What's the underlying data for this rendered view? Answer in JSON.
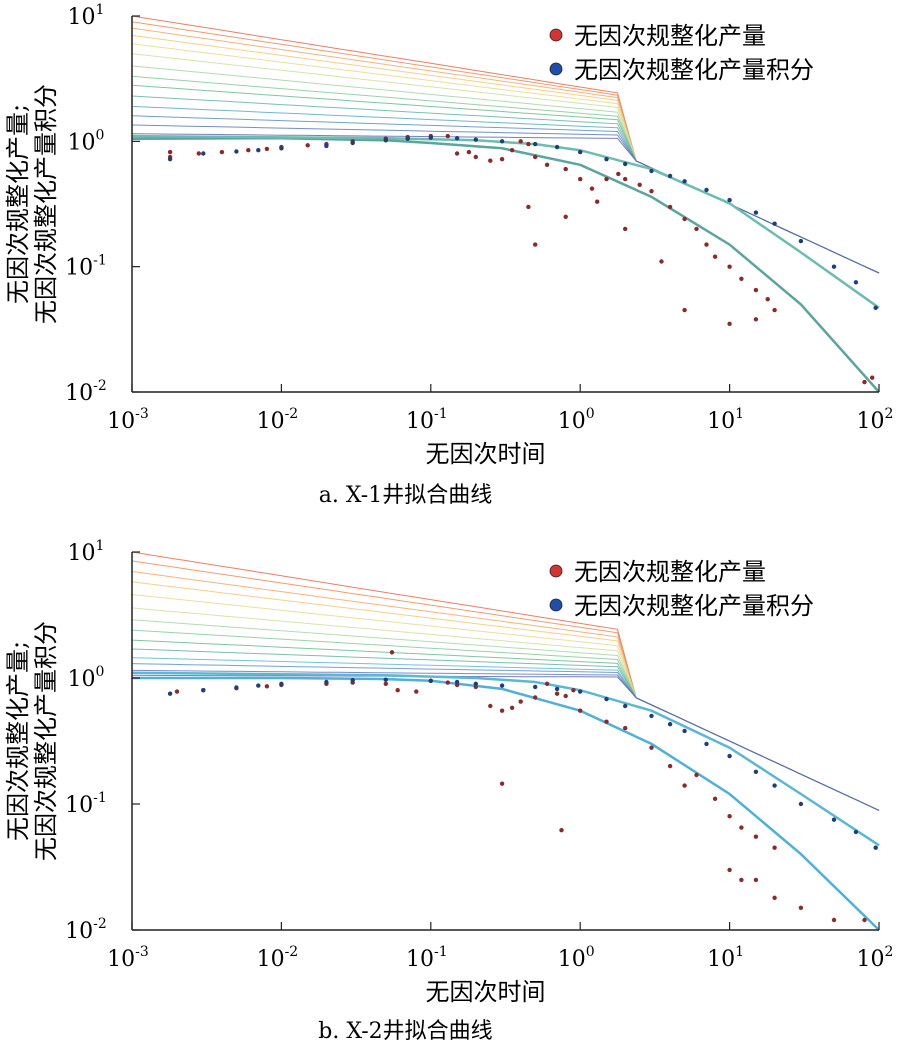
{
  "chart_data": [
    {
      "type": "scatter",
      "subtitle": "a. X-1井拟合曲线",
      "xlabel": "无因次时间",
      "ylabel": [
        "无因次规整化产量;",
        "无因次规整化产量积分"
      ],
      "xscale": "log",
      "yscale": "log",
      "xlim": [
        0.001,
        100
      ],
      "ylim": [
        0.01,
        10
      ],
      "x_ticks": [
        {
          "base": "10",
          "exp": "-3"
        },
        {
          "base": "10",
          "exp": "-2"
        },
        {
          "base": "10",
          "exp": "-1"
        },
        {
          "base": "10",
          "exp": "0"
        },
        {
          "base": "10",
          "exp": "1"
        },
        {
          "base": "10",
          "exp": "2"
        }
      ],
      "y_ticks": [
        {
          "base": "10",
          "exp": "-2"
        },
        {
          "base": "10",
          "exp": "-1"
        },
        {
          "base": "10",
          "exp": "0"
        },
        {
          "base": "10",
          "exp": "1"
        }
      ],
      "legend_position": "top-right",
      "series": [
        {
          "name": "无因次规整化产量",
          "color": "#8b2a2a",
          "points": [
            [
              0.0018,
              0.75
            ],
            [
              0.0018,
              0.82
            ],
            [
              0.0028,
              0.8
            ],
            [
              0.004,
              0.82
            ],
            [
              0.006,
              0.85
            ],
            [
              0.008,
              0.87
            ],
            [
              0.01,
              0.9
            ],
            [
              0.015,
              0.93
            ],
            [
              0.02,
              0.95
            ],
            [
              0.03,
              1.0
            ],
            [
              0.05,
              1.05
            ],
            [
              0.07,
              1.08
            ],
            [
              0.1,
              1.1
            ],
            [
              0.13,
              1.1
            ],
            [
              0.15,
              0.8
            ],
            [
              0.18,
              0.82
            ],
            [
              0.2,
              0.75
            ],
            [
              0.25,
              0.7
            ],
            [
              0.3,
              0.72
            ],
            [
              0.35,
              0.85
            ],
            [
              0.4,
              1.0
            ],
            [
              0.45,
              0.95
            ],
            [
              0.5,
              0.75
            ],
            [
              0.6,
              0.65
            ],
            [
              0.8,
              0.6
            ],
            [
              1.0,
              0.5
            ],
            [
              1.2,
              0.42
            ],
            [
              1.5,
              0.5
            ],
            [
              1.8,
              0.55
            ],
            [
              2.0,
              0.5
            ],
            [
              2.5,
              0.45
            ],
            [
              3.0,
              0.4
            ],
            [
              4.0,
              0.3
            ],
            [
              5.0,
              0.24
            ],
            [
              6.0,
              0.2
            ],
            [
              7.0,
              0.15
            ],
            [
              8.0,
              0.12
            ],
            [
              10.0,
              0.1
            ],
            [
              12.0,
              0.08
            ],
            [
              15.0,
              0.065
            ],
            [
              18.0,
              0.055
            ],
            [
              20.0,
              0.045
            ],
            [
              0.45,
              0.3
            ],
            [
              0.5,
              0.15
            ],
            [
              0.8,
              0.25
            ],
            [
              1.3,
              0.33
            ],
            [
              2.0,
              0.2
            ],
            [
              3.5,
              0.11
            ],
            [
              5.0,
              0.045
            ],
            [
              10.0,
              0.035
            ],
            [
              15.0,
              0.038
            ],
            [
              80.0,
              0.012
            ],
            [
              90.0,
              0.013
            ]
          ]
        },
        {
          "name": "无因次规整化产量积分",
          "color": "#1f3f7a",
          "points": [
            [
              0.0018,
              0.72
            ],
            [
              0.003,
              0.8
            ],
            [
              0.005,
              0.83
            ],
            [
              0.007,
              0.85
            ],
            [
              0.01,
              0.88
            ],
            [
              0.02,
              0.92
            ],
            [
              0.03,
              0.97
            ],
            [
              0.05,
              1.02
            ],
            [
              0.07,
              1.05
            ],
            [
              0.1,
              1.07
            ],
            [
              0.15,
              1.06
            ],
            [
              0.2,
              1.03
            ],
            [
              0.3,
              1.0
            ],
            [
              0.5,
              0.95
            ],
            [
              0.7,
              0.9
            ],
            [
              1.0,
              0.82
            ],
            [
              1.5,
              0.72
            ],
            [
              2.0,
              0.66
            ],
            [
              3.0,
              0.58
            ],
            [
              4.0,
              0.53
            ],
            [
              5.0,
              0.48
            ],
            [
              7.0,
              0.41
            ],
            [
              10.0,
              0.34
            ],
            [
              15.0,
              0.27
            ],
            [
              20.0,
              0.22
            ],
            [
              30.0,
              0.16
            ],
            [
              50.0,
              0.1
            ],
            [
              70.0,
              0.075
            ],
            [
              95.0,
              0.047
            ]
          ]
        }
      ],
      "type_curves": {
        "colors": [
          "#e46a4e",
          "#ec8c58",
          "#f1a965",
          "#f3c877",
          "#e7d98a",
          "#cbe0a0",
          "#a6d6a4",
          "#88c99a",
          "#6dbb8f",
          "#63b5a3",
          "#5aa9c2",
          "#5c8fc6",
          "#5e79bb",
          "#5f68b0"
        ],
        "start_y": [
          10,
          9,
          8,
          7,
          6,
          5,
          4,
          3.3,
          2.8,
          2.3,
          1.9,
          1.6,
          1.35,
          1.15
        ]
      },
      "fit_lines": [
        {
          "color": "#5aa59e",
          "points": [
            [
              0.001,
              1.05
            ],
            [
              0.01,
              1.06
            ],
            [
              0.05,
              1.02
            ],
            [
              0.1,
              0.97
            ],
            [
              0.3,
              0.88
            ],
            [
              1.0,
              0.65
            ],
            [
              3.0,
              0.36
            ],
            [
              10.0,
              0.15
            ],
            [
              30.0,
              0.05
            ],
            [
              100.0,
              0.01
            ]
          ]
        },
        {
          "color": "#6cbcb2",
          "points": [
            [
              0.001,
              1.1
            ],
            [
              0.05,
              1.06
            ],
            [
              0.2,
              1.02
            ],
            [
              0.5,
              0.95
            ],
            [
              1.0,
              0.85
            ],
            [
              3.0,
              0.6
            ],
            [
              10.0,
              0.32
            ],
            [
              30.0,
              0.13
            ],
            [
              100.0,
              0.047
            ]
          ]
        }
      ]
    },
    {
      "type": "scatter",
      "subtitle": "b. X-2井拟合曲线",
      "xlabel": "无因次时间",
      "ylabel": [
        "无因次规整化产量;",
        "无因次规整化产量积分"
      ],
      "xscale": "log",
      "yscale": "log",
      "xlim": [
        0.001,
        100
      ],
      "ylim": [
        0.01,
        10
      ],
      "x_ticks": [
        {
          "base": "10",
          "exp": "-3"
        },
        {
          "base": "10",
          "exp": "-2"
        },
        {
          "base": "10",
          "exp": "-1"
        },
        {
          "base": "10",
          "exp": "0"
        },
        {
          "base": "10",
          "exp": "1"
        },
        {
          "base": "10",
          "exp": "2"
        }
      ],
      "y_ticks": [
        {
          "base": "10",
          "exp": "-2"
        },
        {
          "base": "10",
          "exp": "-1"
        },
        {
          "base": "10",
          "exp": "0"
        },
        {
          "base": "10",
          "exp": "1"
        }
      ],
      "legend_position": "top-right",
      "series": [
        {
          "name": "无因次规整化产量",
          "color": "#8b2a2a",
          "points": [
            [
              0.002,
              0.78
            ],
            [
              0.003,
              0.8
            ],
            [
              0.005,
              0.83
            ],
            [
              0.008,
              0.86
            ],
            [
              0.01,
              0.88
            ],
            [
              0.02,
              0.9
            ],
            [
              0.03,
              0.92
            ],
            [
              0.05,
              0.9
            ],
            [
              0.055,
              1.6
            ],
            [
              0.06,
              0.8
            ],
            [
              0.08,
              0.78
            ],
            [
              0.1,
              0.95
            ],
            [
              0.13,
              0.92
            ],
            [
              0.15,
              0.88
            ],
            [
              0.2,
              0.85
            ],
            [
              0.25,
              0.6
            ],
            [
              0.3,
              0.55
            ],
            [
              0.35,
              0.58
            ],
            [
              0.4,
              0.65
            ],
            [
              0.5,
              0.7
            ],
            [
              0.6,
              0.9
            ],
            [
              0.7,
              0.75
            ],
            [
              0.8,
              0.72
            ],
            [
              0.9,
              0.8
            ],
            [
              1.0,
              0.55
            ],
            [
              1.5,
              0.45
            ],
            [
              2.0,
              0.4
            ],
            [
              3.0,
              0.28
            ],
            [
              4.0,
              0.2
            ],
            [
              5.0,
              0.14
            ],
            [
              6.0,
              0.17
            ],
            [
              8.0,
              0.11
            ],
            [
              10.0,
              0.08
            ],
            [
              12.0,
              0.065
            ],
            [
              15.0,
              0.055
            ],
            [
              20.0,
              0.045
            ],
            [
              0.3,
              0.145
            ],
            [
              0.75,
              0.062
            ],
            [
              10.0,
              0.03
            ],
            [
              12.0,
              0.025
            ],
            [
              15.0,
              0.025
            ],
            [
              20.0,
              0.018
            ],
            [
              30.0,
              0.015
            ],
            [
              50.0,
              0.012
            ],
            [
              80.0,
              0.012
            ]
          ]
        },
        {
          "name": "无因次规整化产量积分",
          "color": "#1f3f7a",
          "points": [
            [
              0.0018,
              0.75
            ],
            [
              0.003,
              0.8
            ],
            [
              0.005,
              0.84
            ],
            [
              0.007,
              0.87
            ],
            [
              0.01,
              0.9
            ],
            [
              0.02,
              0.93
            ],
            [
              0.03,
              0.96
            ],
            [
              0.05,
              0.97
            ],
            [
              0.1,
              0.95
            ],
            [
              0.15,
              0.93
            ],
            [
              0.2,
              0.9
            ],
            [
              0.3,
              0.87
            ],
            [
              0.5,
              0.85
            ],
            [
              0.7,
              0.82
            ],
            [
              1.0,
              0.78
            ],
            [
              1.5,
              0.68
            ],
            [
              2.0,
              0.6
            ],
            [
              3.0,
              0.5
            ],
            [
              4.0,
              0.43
            ],
            [
              5.0,
              0.38
            ],
            [
              7.0,
              0.3
            ],
            [
              10.0,
              0.24
            ],
            [
              15.0,
              0.18
            ],
            [
              20.0,
              0.14
            ],
            [
              30.0,
              0.1
            ],
            [
              50.0,
              0.075
            ],
            [
              70.0,
              0.06
            ],
            [
              95.0,
              0.045
            ]
          ]
        }
      ],
      "type_curves": {
        "colors": [
          "#e46a4e",
          "#ec8c58",
          "#f1a965",
          "#f3c877",
          "#e7d98a",
          "#cbe0a0",
          "#a6d6a4",
          "#88c99a",
          "#6dbb8f",
          "#63b5a3",
          "#5ab8d4",
          "#5c8fc6",
          "#5e79bb",
          "#5f68b0"
        ],
        "start_y": [
          10,
          8.5,
          7,
          5.8,
          4.6,
          3.6,
          2.9,
          2.4,
          2.0,
          1.7,
          1.45,
          1.3,
          1.15,
          1.05
        ]
      },
      "fit_lines": [
        {
          "color": "#4fb0d8",
          "points": [
            [
              0.001,
              1.0
            ],
            [
              0.01,
              1.0
            ],
            [
              0.05,
              0.98
            ],
            [
              0.1,
              0.95
            ],
            [
              0.3,
              0.82
            ],
            [
              1.0,
              0.55
            ],
            [
              3.0,
              0.3
            ],
            [
              10.0,
              0.12
            ],
            [
              30.0,
              0.04
            ],
            [
              100.0,
              0.01
            ]
          ]
        },
        {
          "color": "#5ab8d4",
          "points": [
            [
              0.001,
              1.1
            ],
            [
              0.05,
              1.05
            ],
            [
              0.2,
              1.0
            ],
            [
              0.5,
              0.93
            ],
            [
              1.0,
              0.8
            ],
            [
              3.0,
              0.55
            ],
            [
              10.0,
              0.28
            ],
            [
              30.0,
              0.12
            ],
            [
              100.0,
              0.047
            ]
          ]
        }
      ]
    }
  ]
}
